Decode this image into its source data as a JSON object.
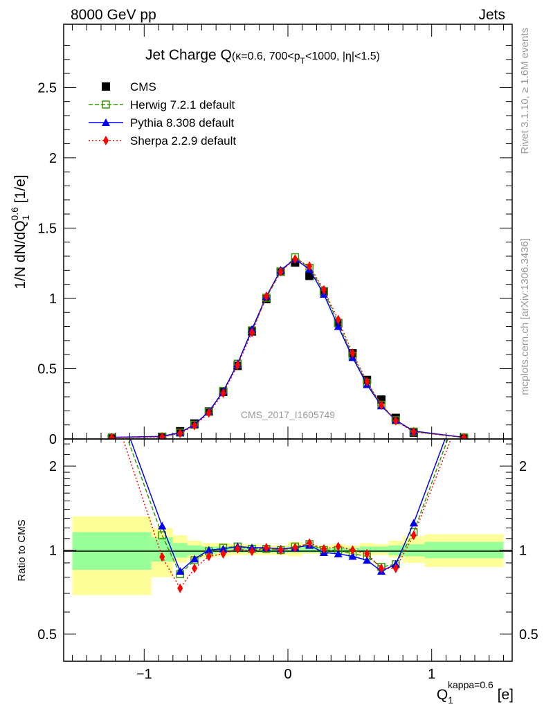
{
  "header": {
    "left": "8000 GeV pp",
    "right": "Jets"
  },
  "side_labels": {
    "rivet": "Rivet 3.1.10, ≥ 1.6M events",
    "mcplots": "mcplots.cern.ch [arXiv:1306.3436]"
  },
  "watermark": "CMS_2017_I1605749",
  "chart_data": {
    "type": "line",
    "title_main": "Jet Charge Q",
    "title_sub": "(κ=0.6, 700<p",
    "title_sub_T": "T",
    "title_sub_end": "<1000, |η|<1.5)",
    "ylabel": "1/N dN/dQ",
    "ylabel_sub": "1",
    "ylabel_sup": "0.6",
    "ylabel_unit": " [1/e]",
    "xlabel": "Q",
    "xlabel_sub": "1",
    "xlabel_sup": "kappa=0.6",
    "xlabel_unit": " [e]",
    "ratio_ylabel": "Ratio to CMS",
    "xlim": [
      -1.56,
      1.56
    ],
    "ylim": [
      0,
      2.95
    ],
    "ratio_ylim": [
      0.4,
      2.5
    ],
    "ratio_scale": "log",
    "xticks": [
      -1,
      0,
      1
    ],
    "xtick_labels": [
      "−1",
      "0",
      "1"
    ],
    "yticks": [
      0,
      0.5,
      1,
      1.5,
      2,
      2.5
    ],
    "ytick_labels": [
      "0",
      "0.5",
      "1",
      "1.5",
      "2",
      "2.5"
    ],
    "ratio_yticks": [
      0.5,
      1,
      2
    ],
    "ratio_ytick_labels": [
      "0.5",
      "1",
      "2"
    ],
    "legend_placement": "top-left",
    "x": [
      -1.225,
      -0.875,
      -0.75,
      -0.65,
      -0.55,
      -0.45,
      -0.35,
      -0.25,
      -0.15,
      -0.05,
      0.05,
      0.15,
      0.25,
      0.35,
      0.45,
      0.55,
      0.65,
      0.75,
      0.875,
      1.225
    ],
    "data": {
      "name": "CMS",
      "color": "#000000",
      "values": [
        0.003,
        0.015,
        0.055,
        0.11,
        0.195,
        0.335,
        0.52,
        0.765,
        0.995,
        1.19,
        1.255,
        1.16,
        1.05,
        0.825,
        0.61,
        0.42,
        0.28,
        0.15,
        0.045,
        0.003
      ]
    },
    "series": [
      {
        "name": "Herwig 7.2.1 default",
        "color": "#339900",
        "marker": "open-square",
        "line": "dashed",
        "ratio": [
          3.6,
          1.13,
          0.82,
          0.92,
          0.99,
          1.02,
          1.03,
          1.01,
          1.01,
          1.0,
          1.03,
          1.05,
          1.0,
          1.0,
          0.97,
          0.95,
          0.87,
          0.89,
          1.16,
          3.6
        ]
      },
      {
        "name": "Pythia 8.308 default",
        "color": "#0000ee",
        "marker": "triangle",
        "line": "solid",
        "ratio": [
          3.8,
          1.22,
          0.84,
          0.93,
          1.0,
          1.01,
          1.03,
          1.02,
          1.02,
          1.01,
          1.02,
          1.04,
          0.98,
          0.97,
          0.95,
          0.92,
          0.84,
          0.89,
          1.25,
          3.8
        ]
      },
      {
        "name": "Sherpa 2.2.9 default",
        "color": "#ff0000",
        "marker": "diamond",
        "line": "dotted",
        "ratio": [
          3.3,
          0.945,
          0.73,
          0.86,
          0.95,
          0.97,
          1.01,
          0.99,
          1.02,
          1.0,
          1.02,
          1.06,
          1.01,
          1.03,
          1.0,
          0.97,
          0.86,
          0.86,
          1.13,
          3.3
        ]
      }
    ],
    "uncertainty_bands": {
      "inner_color": "#99ff99",
      "outer_color": "#ffff99",
      "bins": [
        {
          "lo": -1.5,
          "hi": -0.95,
          "inner": [
            0.85,
            1.16
          ],
          "outer": [
            0.69,
            1.32
          ]
        },
        {
          "lo": -0.95,
          "hi": -0.8,
          "inner": [
            0.91,
            1.11
          ],
          "outer": [
            0.8,
            1.2
          ]
        },
        {
          "lo": -0.8,
          "hi": -0.7,
          "inner": [
            0.94,
            1.06
          ],
          "outer": [
            0.9,
            1.13
          ]
        },
        {
          "lo": -0.7,
          "hi": -0.6,
          "inner": [
            0.96,
            1.04
          ],
          "outer": [
            0.93,
            1.08
          ]
        },
        {
          "lo": -0.6,
          "hi": -0.5,
          "inner": [
            0.97,
            1.03
          ],
          "outer": [
            0.94,
            1.06
          ]
        },
        {
          "lo": -0.5,
          "hi": -0.4,
          "inner": [
            0.98,
            1.03
          ],
          "outer": [
            0.95,
            1.06
          ]
        },
        {
          "lo": -0.4,
          "hi": -0.3,
          "inner": [
            0.98,
            1.02
          ],
          "outer": [
            0.96,
            1.05
          ]
        },
        {
          "lo": -0.3,
          "hi": -0.2,
          "inner": [
            0.98,
            1.02
          ],
          "outer": [
            0.96,
            1.05
          ]
        },
        {
          "lo": -0.2,
          "hi": -0.1,
          "inner": [
            0.98,
            1.02
          ],
          "outer": [
            0.96,
            1.04
          ]
        },
        {
          "lo": -0.1,
          "hi": 0.0,
          "inner": [
            0.98,
            1.02
          ],
          "outer": [
            0.96,
            1.04
          ]
        },
        {
          "lo": 0.0,
          "hi": 0.1,
          "inner": [
            0.98,
            1.03
          ],
          "outer": [
            0.95,
            1.07
          ]
        },
        {
          "lo": 0.1,
          "hi": 0.2,
          "inner": [
            0.98,
            1.03
          ],
          "outer": [
            0.97,
            1.04
          ]
        },
        {
          "lo": 0.2,
          "hi": 0.3,
          "inner": [
            0.98,
            1.02
          ],
          "outer": [
            0.97,
            1.04
          ]
        },
        {
          "lo": 0.3,
          "hi": 0.4,
          "inner": [
            0.98,
            1.02
          ],
          "outer": [
            0.97,
            1.05
          ]
        },
        {
          "lo": 0.4,
          "hi": 0.5,
          "inner": [
            0.98,
            1.02
          ],
          "outer": [
            0.97,
            1.04
          ]
        },
        {
          "lo": 0.5,
          "hi": 0.6,
          "inner": [
            0.98,
            1.03
          ],
          "outer": [
            0.96,
            1.06
          ]
        },
        {
          "lo": 0.6,
          "hi": 0.7,
          "inner": [
            0.98,
            1.03
          ],
          "outer": [
            0.96,
            1.05
          ]
        },
        {
          "lo": 0.7,
          "hi": 0.8,
          "inner": [
            0.96,
            1.04
          ],
          "outer": [
            0.94,
            1.08
          ]
        },
        {
          "lo": 0.8,
          "hi": 0.95,
          "inner": [
            0.95,
            1.05
          ],
          "outer": [
            0.9,
            1.12
          ]
        },
        {
          "lo": 0.95,
          "hi": 1.5,
          "inner": [
            0.935,
            1.07
          ],
          "outer": [
            0.87,
            1.14
          ]
        }
      ]
    }
  }
}
